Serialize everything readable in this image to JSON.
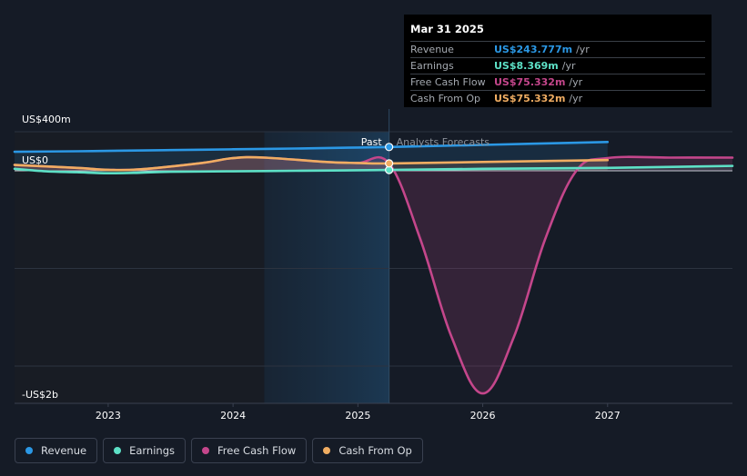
{
  "tooltip": {
    "date": "Mar 31 2025",
    "rows": [
      {
        "label": "Revenue",
        "value": "US$243.777m",
        "unit": "/yr",
        "color": "#2b98e5"
      },
      {
        "label": "Earnings",
        "value": "US$8.369m",
        "unit": "/yr",
        "color": "#5de0c6"
      },
      {
        "label": "Free Cash Flow",
        "value": "US$75.332m",
        "unit": "/yr",
        "color": "#c4468b"
      },
      {
        "label": "Cash From Op",
        "value": "US$75.332m",
        "unit": "/yr",
        "color": "#f0ad62"
      }
    ]
  },
  "legend": [
    {
      "label": "Revenue",
      "color": "#2b98e5"
    },
    {
      "label": "Earnings",
      "color": "#5de0c6"
    },
    {
      "label": "Free Cash Flow",
      "color": "#c4468b"
    },
    {
      "label": "Cash From Op",
      "color": "#f0ad62"
    }
  ],
  "chart_data": {
    "type": "line",
    "y_tick_labels": [
      {
        "value": 400,
        "label": "US$400m"
      },
      {
        "value": 0,
        "label": "US$0"
      },
      {
        "value": -2000,
        "label": "-US$2b"
      }
    ],
    "ylim": [
      -2400,
      400
    ],
    "xlim": [
      2022.25,
      2028.0
    ],
    "x_ticks": [
      {
        "value": 2023,
        "label": "2023"
      },
      {
        "value": 2024,
        "label": "2024"
      },
      {
        "value": 2025,
        "label": "2025"
      },
      {
        "value": 2026,
        "label": "2026"
      },
      {
        "value": 2027,
        "label": "2027"
      }
    ],
    "past_label": "Past",
    "forecast_label": "Analysts Forecasts",
    "divider_x": 2025.25,
    "highlight_start_x": 2024.25,
    "series": [
      {
        "name": "Revenue",
        "color": "#2b98e5",
        "x": [
          2022.25,
          2022.75,
          2023.0,
          2023.5,
          2024.0,
          2024.5,
          2025.0,
          2025.25,
          2026.0,
          2027.0
        ],
        "y": [
          195,
          200,
          204,
          212,
          220,
          228,
          238,
          243.777,
          265,
          295
        ]
      },
      {
        "name": "Earnings",
        "color": "#5de0c6",
        "x": [
          2022.25,
          2022.5,
          2022.75,
          2023.0,
          2023.25,
          2023.5,
          2024.0,
          2024.5,
          2025.0,
          2025.25,
          2026.0,
          2027.0,
          2028.0
        ],
        "y": [
          20,
          -5,
          -15,
          -25,
          -20,
          -10,
          -5,
          0,
          5,
          8.369,
          20,
          30,
          50
        ]
      },
      {
        "name": "Free Cash Flow",
        "color": "#c4468b",
        "x": [
          2022.25,
          2022.75,
          2023.0,
          2023.25,
          2023.75,
          2024.0,
          2024.25,
          2024.75,
          2025.0,
          2025.25,
          2025.5,
          2025.75,
          2026.0,
          2026.25,
          2026.5,
          2026.75,
          2027.0,
          2027.5,
          2028.0
        ],
        "y": [
          60,
          30,
          10,
          15,
          80,
          130,
          135,
          90,
          80,
          75.332,
          -700,
          -1700,
          -2280,
          -1700,
          -700,
          0,
          130,
          135,
          135
        ]
      },
      {
        "name": "Cash From Op",
        "color": "#f0ad62",
        "x": [
          2022.25,
          2022.75,
          2023.0,
          2023.25,
          2023.75,
          2024.0,
          2024.25,
          2024.75,
          2025.0,
          2025.25,
          2026.0,
          2027.0
        ],
        "y": [
          60,
          30,
          10,
          15,
          80,
          130,
          135,
          90,
          80,
          75.332,
          90,
          110
        ]
      }
    ]
  }
}
